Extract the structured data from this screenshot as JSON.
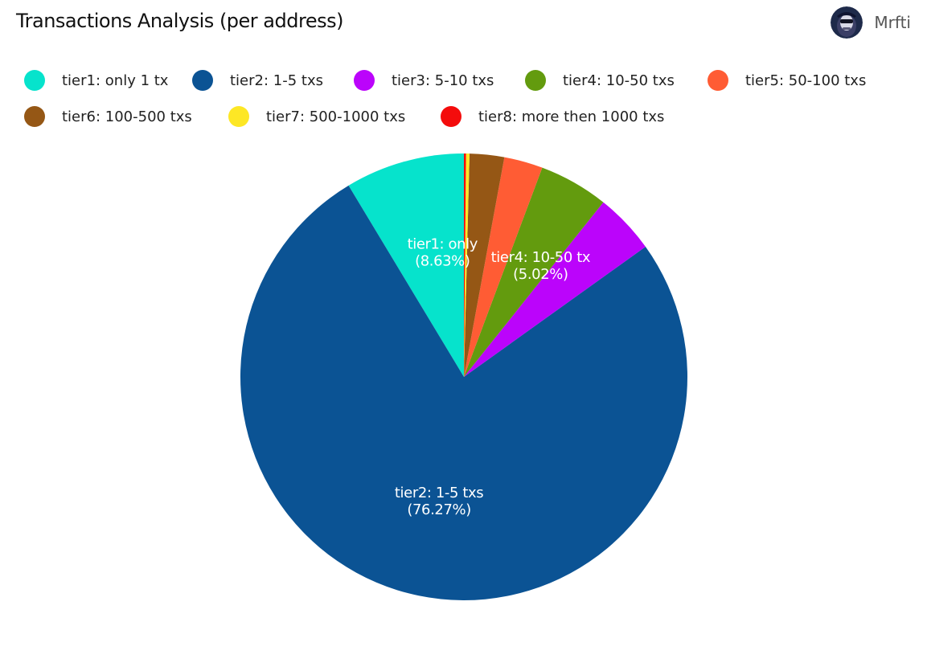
{
  "header": {
    "title": "Transactions Analysis (per address)",
    "author": "Mrfti"
  },
  "chart_data": {
    "type": "pie",
    "start_angle_deg": 0,
    "direction": "counterclockwise",
    "slices": [
      {
        "label": "tier1: only 1 tx",
        "value": 8.63,
        "color": "#06e3cc",
        "inner_label": "tier1: only",
        "inner_value": "(8.63%)"
      },
      {
        "label": "tier2: 1-5 txs",
        "value": 76.27,
        "color": "#0b5394",
        "inner_label": "tier2: 1-5 txs",
        "inner_value": "(76.27%)"
      },
      {
        "label": "tier3: 5-10 txs",
        "value": 4.38,
        "color": "#bb04fb",
        "inner_label": "",
        "inner_value": ""
      },
      {
        "label": "tier4: 10-50 txs",
        "value": 5.02,
        "color": "#639b0e",
        "inner_label": "tier4: 10-50 tx",
        "inner_value": "(5.02%)"
      },
      {
        "label": "tier5: 50-100 txs",
        "value": 2.8,
        "color": "#ff5c34",
        "inner_label": "",
        "inner_value": ""
      },
      {
        "label": "tier6: 100-500 txs",
        "value": 2.5,
        "color": "#955715",
        "inner_label": "",
        "inner_value": ""
      },
      {
        "label": "tier7: 500-1000 txs",
        "value": 0.25,
        "color": "#fde725",
        "inner_label": "",
        "inner_value": ""
      },
      {
        "label": "tier8: more then 1000 txs",
        "value": 0.15,
        "color": "#f40c0c",
        "inner_label": "",
        "inner_value": ""
      }
    ],
    "legend_position": "top",
    "legend_rows": [
      [
        0,
        1,
        2,
        3,
        4
      ],
      [
        5,
        6,
        7
      ]
    ]
  }
}
